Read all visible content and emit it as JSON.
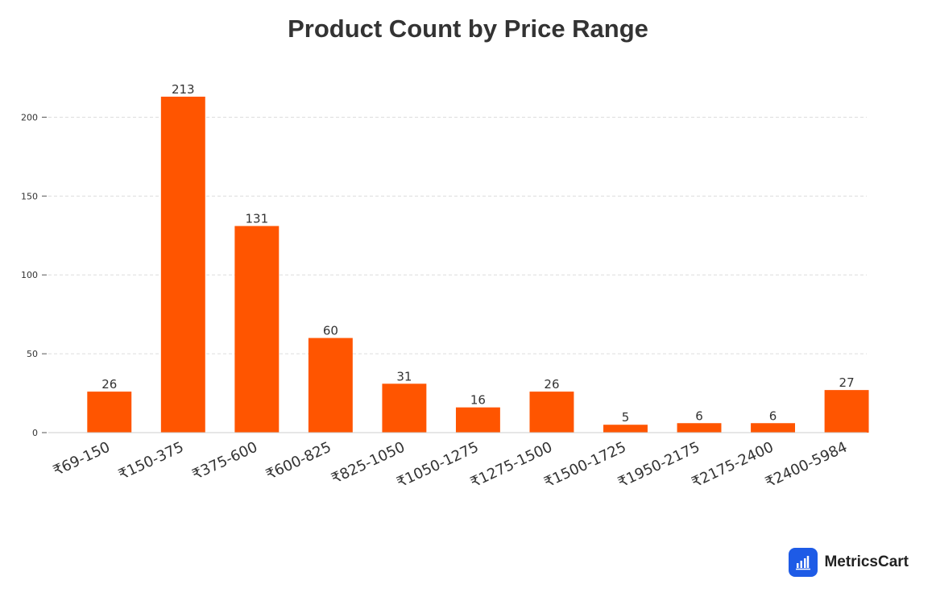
{
  "chart_data": {
    "type": "bar",
    "title": "Product Count by Price Range",
    "xlabel": "",
    "ylabel": "",
    "categories": [
      "₹69-150",
      "₹150-375",
      "₹375-600",
      "₹600-825",
      "₹825-1050",
      "₹1050-1275",
      "₹1275-1500",
      "₹1500-1725",
      "₹1950-2175",
      "₹2175-2400",
      "₹2400-5984"
    ],
    "values": [
      26,
      213,
      131,
      60,
      31,
      16,
      26,
      5,
      6,
      6,
      27
    ],
    "ylim": [
      0,
      213
    ],
    "yticks": [
      0,
      50,
      100,
      150,
      200
    ],
    "grid": true,
    "data_labels": true,
    "bar_color": "#ff5500"
  },
  "brand": {
    "name": "MetricsCart",
    "icon": "bar-chart-logo-icon",
    "icon_color": "#1e5be6"
  }
}
